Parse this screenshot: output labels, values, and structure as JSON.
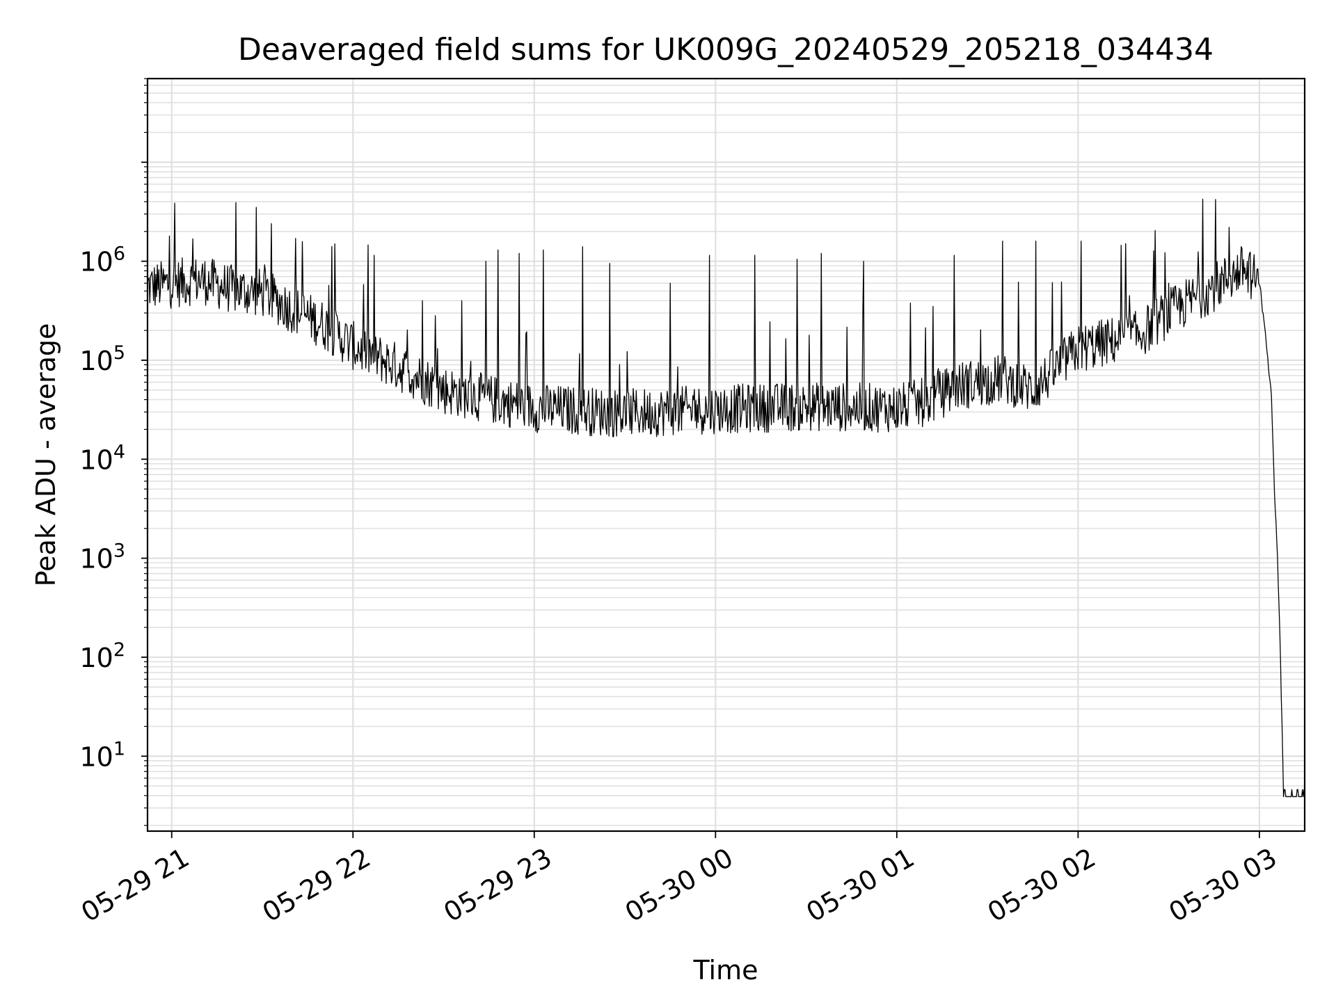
{
  "chart_data": {
    "type": "line",
    "title": "Deaveraged field sums for UK009G_20240529_205218_034434",
    "xlabel": "Time",
    "ylabel": "Peak ADU - average",
    "yscale": "log",
    "ylim": [
      1.75,
      70000000
    ],
    "xlim": [
      "2024-05-29 20:52",
      "2024-05-30 03:15"
    ],
    "grid": true,
    "line_color": "#000000",
    "grid_color": "#e0e0e0",
    "x_ticks": [
      {
        "value": "2024-05-29 21:00",
        "label": "05-29 21"
      },
      {
        "value": "2024-05-29 22:00",
        "label": "05-29 22"
      },
      {
        "value": "2024-05-29 23:00",
        "label": "05-29 23"
      },
      {
        "value": "2024-05-30 00:00",
        "label": "05-30 00"
      },
      {
        "value": "2024-05-30 01:00",
        "label": "05-30 01"
      },
      {
        "value": "2024-05-30 02:00",
        "label": "05-30 02"
      },
      {
        "value": "2024-05-30 03:00",
        "label": "05-30 03"
      }
    ],
    "y_ticks": [
      {
        "value": 10,
        "base": "10",
        "exp": "1"
      },
      {
        "value": 100,
        "base": "10",
        "exp": "2"
      },
      {
        "value": 1000,
        "base": "10",
        "exp": "3"
      },
      {
        "value": 10000,
        "base": "10",
        "exp": "4"
      },
      {
        "value": 100000,
        "base": "10",
        "exp": "5"
      },
      {
        "value": 1000000,
        "base": "10",
        "exp": "6"
      }
    ],
    "series": [
      {
        "baseline": [
          [
            "2024-05-29 20:52",
            550000
          ],
          [
            "2024-05-29 21:10",
            650000
          ],
          [
            "2024-05-29 21:20",
            520000
          ],
          [
            "2024-05-29 21:30",
            480000
          ],
          [
            "2024-05-29 21:40",
            330000
          ],
          [
            "2024-05-29 21:50",
            230000
          ],
          [
            "2024-05-29 22:00",
            140000
          ],
          [
            "2024-05-29 22:15",
            85000
          ],
          [
            "2024-05-29 22:30",
            50000
          ],
          [
            "2024-05-29 23:00",
            33000
          ],
          [
            "2024-05-29 23:30",
            29000
          ],
          [
            "2024-05-30 00:00",
            32000
          ],
          [
            "2024-05-30 00:30",
            34000
          ],
          [
            "2024-05-30 01:00",
            33000
          ],
          [
            "2024-05-30 01:10",
            38000
          ],
          [
            "2024-05-30 01:20",
            55000
          ],
          [
            "2024-05-30 01:35",
            65000
          ],
          [
            "2024-05-30 01:45",
            50000
          ],
          [
            "2024-05-30 02:00",
            130000
          ],
          [
            "2024-05-30 02:20",
            180000
          ],
          [
            "2024-05-30 02:30",
            300000
          ],
          [
            "2024-05-30 02:45",
            550000
          ],
          [
            "2024-05-30 02:55",
            850000
          ],
          [
            "2024-05-30 03:00",
            600000
          ],
          [
            "2024-05-30 03:02",
            200000
          ],
          [
            "2024-05-30 03:04",
            40000
          ],
          [
            "2024-05-30 03:05",
            5000
          ],
          [
            "2024-05-30 03:06",
            1000
          ],
          [
            "2024-05-30 03:07",
            100
          ],
          [
            "2024-05-30 03:08",
            3.9
          ],
          [
            "2024-05-30 03:15",
            3.9
          ]
        ],
        "spikes": [
          [
            "2024-05-29 21:28",
            3500000
          ],
          [
            "2024-05-29 21:41",
            1700000
          ],
          [
            "2024-05-29 21:54",
            1500000
          ],
          [
            "2024-05-29 22:07",
            1150000
          ],
          [
            "2024-05-29 22:23",
            400000
          ],
          [
            "2024-05-29 22:36",
            400000
          ],
          [
            "2024-05-29 22:44",
            1000000
          ],
          [
            "2024-05-29 22:48",
            1300000
          ],
          [
            "2024-05-29 22:55",
            1200000
          ],
          [
            "2024-05-29 23:03",
            1300000
          ],
          [
            "2024-05-29 23:16",
            1400000
          ],
          [
            "2024-05-29 23:25",
            950000
          ],
          [
            "2024-05-29 23:45",
            600000
          ],
          [
            "2024-05-29 23:58",
            1150000
          ],
          [
            "2024-05-30 00:13",
            1150000
          ],
          [
            "2024-05-30 00:27",
            1050000
          ],
          [
            "2024-05-30 00:35",
            1200000
          ],
          [
            "2024-05-30 00:49",
            1000000
          ],
          [
            "2024-05-30 01:12",
            350000
          ],
          [
            "2024-05-30 01:19",
            1150000
          ],
          [
            "2024-05-30 01:35",
            1600000
          ],
          [
            "2024-05-30 01:46",
            1600000
          ],
          [
            "2024-05-30 02:01",
            1600000
          ],
          [
            "2024-05-30 02:17",
            450000
          ],
          [
            "2024-05-30 02:30",
            600000
          ],
          [
            "2024-05-30 02:40",
            700000
          ],
          [
            "2024-05-30 02:50",
            2200000
          ],
          [
            "2024-05-30 02:56",
            1000000
          ]
        ]
      }
    ]
  }
}
